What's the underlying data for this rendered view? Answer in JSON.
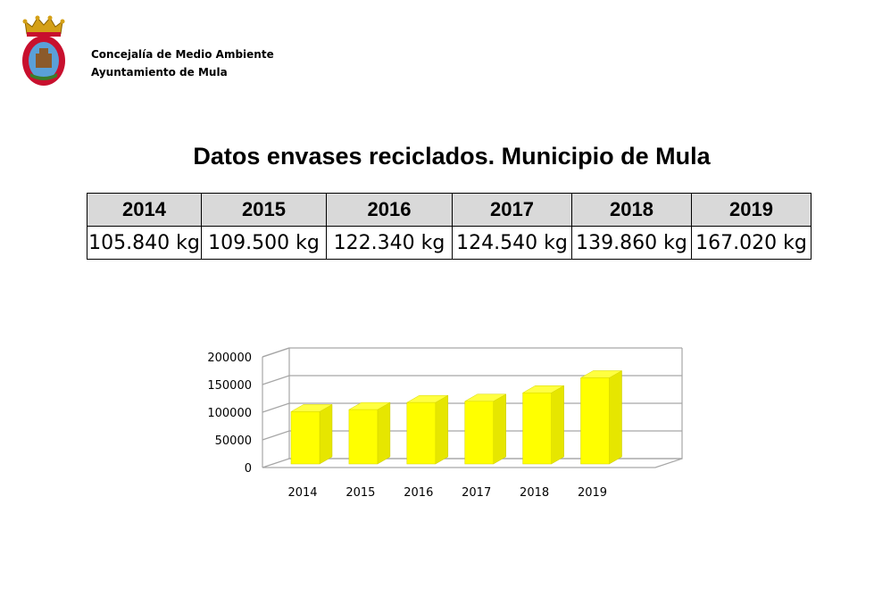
{
  "header": {
    "org_line1": "Concejalía de Medio Ambiente",
    "org_line2": "Ayuntamiento de Mula"
  },
  "title": "Datos envases reciclados. Municipio de Mula",
  "table": {
    "years": [
      "2014",
      "2015",
      "2016",
      "2017",
      "2018",
      "2019"
    ],
    "values": [
      "105.840 kg",
      "109.500 kg",
      "122.340 kg",
      "124.540 kg",
      "139.860 kg",
      "167.020 kg"
    ]
  },
  "chart_data": {
    "type": "bar",
    "categories": [
      "2014",
      "2015",
      "2016",
      "2017",
      "2018",
      "2019"
    ],
    "values": [
      105840,
      109500,
      122340,
      124540,
      139860,
      167020
    ],
    "title": "",
    "xlabel": "",
    "ylabel": "",
    "ylim": [
      0,
      200000
    ],
    "yticks": [
      "0",
      "50000",
      "100000",
      "150000",
      "200000"
    ],
    "grid": true,
    "legend": "none",
    "bar_color": "#ffff00",
    "style": "3d"
  }
}
